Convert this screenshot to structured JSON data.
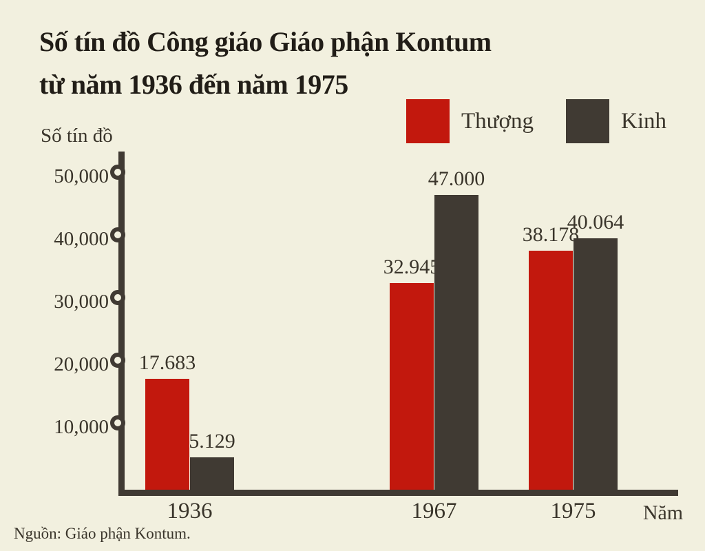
{
  "page": {
    "title_line1": "Số tín đồ Công giáo Giáo phận Kontum",
    "title_line2": "từ năm 1936 đến năm 1975",
    "source": "Nguồn: Giáo phận Kontum.",
    "background": "#f2f0df"
  },
  "chart_data": {
    "type": "bar",
    "title": "Số tín đồ Công giáo Giáo phận Kontum từ năm 1936 đến năm 1975",
    "ylabel": "Số tín đồ",
    "xlabel": "Năm",
    "categories": [
      "1936",
      "1967",
      "1975"
    ],
    "series": [
      {
        "name": "Thượng",
        "color": "#c2180d",
        "values": [
          17683,
          32945,
          38178
        ],
        "value_labels": [
          "17.683",
          "32.945",
          "38.178"
        ]
      },
      {
        "name": "Kinh",
        "color": "#403a33",
        "values": [
          5129,
          47000,
          40064
        ],
        "value_labels": [
          "5.129",
          "47.000",
          "40.064"
        ]
      }
    ],
    "yticks": [
      {
        "value": 10000,
        "label": "10,000"
      },
      {
        "value": 20000,
        "label": "20,000"
      },
      {
        "value": 30000,
        "label": "30,000"
      },
      {
        "value": 40000,
        "label": "40,000"
      },
      {
        "value": 50000,
        "label": "50,000"
      }
    ],
    "ylim": [
      0,
      55000
    ],
    "grid": false,
    "legend_position": "top-right",
    "axis_color": "#403a33",
    "text_color": "#3a352b"
  }
}
